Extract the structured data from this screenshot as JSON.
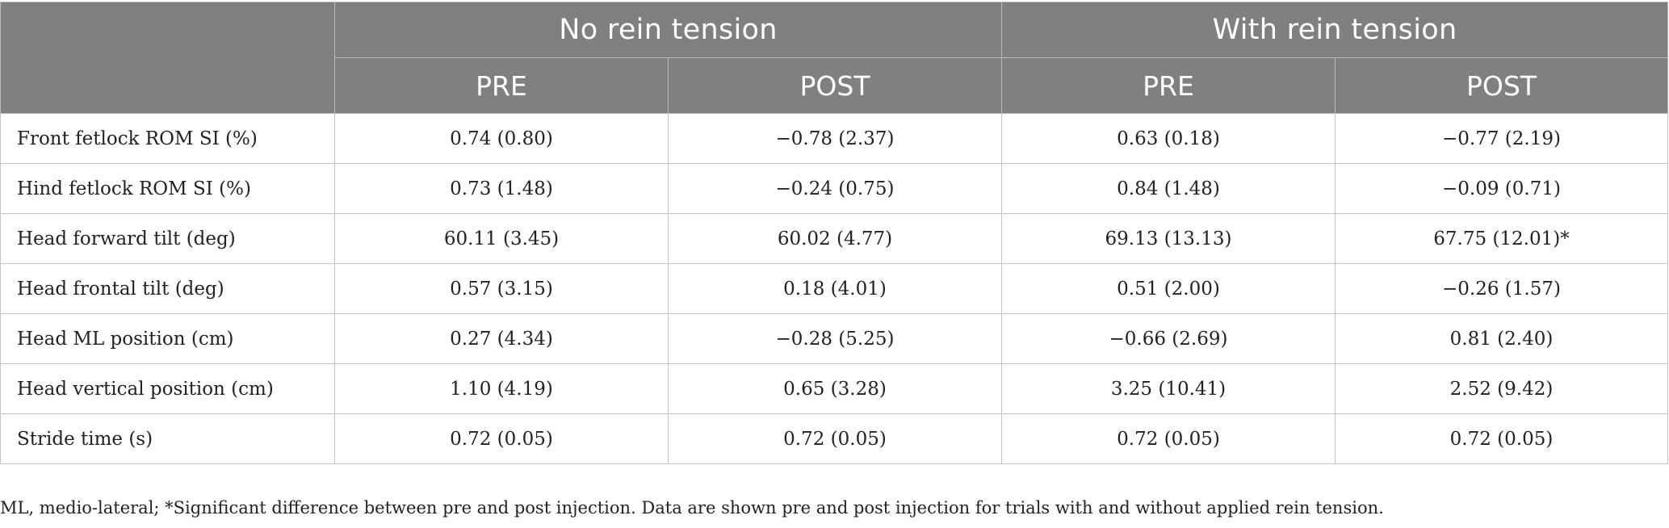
{
  "table": {
    "groups": [
      "No rein tension",
      "With rein tension"
    ],
    "subheaders": [
      "PRE",
      "POST",
      "PRE",
      "POST"
    ],
    "rows": [
      {
        "label": "Front fetlock ROM SI (%)",
        "values": [
          "0.74 (0.80)",
          "−0.78 (2.37)",
          "0.63 (0.18)",
          "−0.77 (2.19)"
        ]
      },
      {
        "label": "Hind fetlock ROM SI (%)",
        "values": [
          "0.73 (1.48)",
          "−0.24 (0.75)",
          "0.84 (1.48)",
          "−0.09 (0.71)"
        ]
      },
      {
        "label": "Head forward tilt (deg)",
        "values": [
          "60.11 (3.45)",
          "60.02 (4.77)",
          "69.13 (13.13)",
          "67.75 (12.01)*"
        ]
      },
      {
        "label": "Head frontal tilt (deg)",
        "values": [
          "0.57 (3.15)",
          "0.18 (4.01)",
          "0.51 (2.00)",
          "−0.26 (1.57)"
        ]
      },
      {
        "label": "Head ML position (cm)",
        "values": [
          "0.27 (4.34)",
          "−0.28 (5.25)",
          "−0.66 (2.69)",
          "0.81 (2.40)"
        ]
      },
      {
        "label": "Head vertical position (cm)",
        "values": [
          "1.10 (4.19)",
          "0.65 (3.28)",
          "3.25 (10.41)",
          "2.52 (9.42)"
        ]
      },
      {
        "label": "Stride time (s)",
        "values": [
          "0.72 (0.05)",
          "0.72 (0.05)",
          "0.72 (0.05)",
          "0.72 (0.05)"
        ]
      }
    ]
  },
  "footnote": "ML, medio-lateral; *Significant difference between pre and post injection. Data are shown pre and post injection for trials with and without applied rein tension.",
  "colors": {
    "header_bg": "#7f807f",
    "header_text": "#ffffff",
    "grid": "#c4c4c4"
  }
}
